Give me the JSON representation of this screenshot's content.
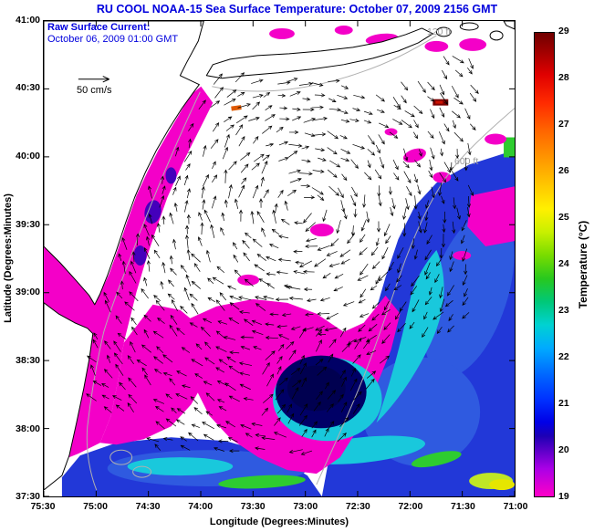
{
  "title": "RU COOL  NOAA-15  Sea Surface Temperature:  October 07, 2009 2156 GMT",
  "annotations": {
    "raw_current_line1": "Raw Surface Current:",
    "raw_current_line2": "October 06, 2009 01:00 GMT",
    "scale_label": "50 cm/s",
    "depth_120": "120 ft",
    "depth_600": "600 ft"
  },
  "axes": {
    "x_label": "Longitude (Degrees:Minutes)",
    "y_label": "Latitude (Degrees:Minutes)",
    "x_ticks": [
      "75:30",
      "75:00",
      "74:30",
      "74:00",
      "73:30",
      "73:00",
      "72:30",
      "72:00",
      "71:30",
      "71:00"
    ],
    "y_ticks": [
      "41:00",
      "40:30",
      "40:00",
      "39:30",
      "39:00",
      "38:30",
      "38:00",
      "37:30"
    ]
  },
  "colorbar": {
    "label": "Temperature (°C)",
    "ticks": [
      "29",
      "28",
      "27",
      "26",
      "25",
      "24",
      "23",
      "22",
      "21",
      "20",
      "19"
    ],
    "min": 19,
    "max": 29
  },
  "colors": {
    "title_text": "#0000dd",
    "annotation_blue": "#0000dd",
    "contour_gray": "#b0b0b0",
    "sst_magenta": "#f400c8",
    "sst_blue": "#2238d8",
    "sst_cyan": "#19c8dc",
    "eddy_navy": "#000066",
    "warm_maroon": "#7a0000"
  },
  "chart_data": {
    "type": "heatmap",
    "title": "RU COOL NOAA-15 Sea Surface Temperature: October 07, 2009 2156 GMT",
    "xlabel": "Longitude (Degrees:Minutes)",
    "ylabel": "Latitude (Degrees:Minutes)",
    "x_range": [
      "75:30",
      "71:00"
    ],
    "y_range": [
      "37:30",
      "41:00"
    ],
    "colorbar": {
      "label": "Temperature (°C)",
      "min": 19,
      "max": 29,
      "ticks": [
        29,
        28,
        27,
        26,
        25,
        24,
        23,
        22,
        21,
        20,
        19
      ]
    },
    "overlay": {
      "type": "quiver",
      "name": "Raw Surface Current",
      "time": "October 06, 2009 01:00 GMT",
      "scale_reference": "50 cm/s",
      "coverage": "HF-radar fan over the New Jersey / Mid-Atlantic Bight shelf showing a broad cyclonic swirl with a dense aligned jet over the eddy near 38:30N 73:00W"
    },
    "depth_contours_ft": [
      120,
      600
    ],
    "features": [
      {
        "region": "nearshore band along New Jersey and Delmarva coasts",
        "sst_c": "19-20 (magenta cold band)"
      },
      {
        "region": "central shelf",
        "sst_c": "no data / cloud mask (white)"
      },
      {
        "region": "outer shelf and slope, southeast half",
        "sst_c": "20-22 (blue) with 22-24 cyan-green filaments"
      },
      {
        "region": "eddy core near 38:30N 73:00W",
        "sst_c": "~20 (dark navy core ringed by 19-20 magenta)"
      },
      {
        "region": "scattered patches northeast sector ~40:00N 71:30-72:30W",
        "sst_c": "19-20 (magenta)"
      },
      {
        "region": "small warm spot near 40:25N 71:40W",
        "sst_c": "28-29 (dark red)"
      },
      {
        "region": "bottom strip south of 38:00N",
        "sst_c": "20-24 (blue/cyan/green streaks)"
      }
    ]
  }
}
